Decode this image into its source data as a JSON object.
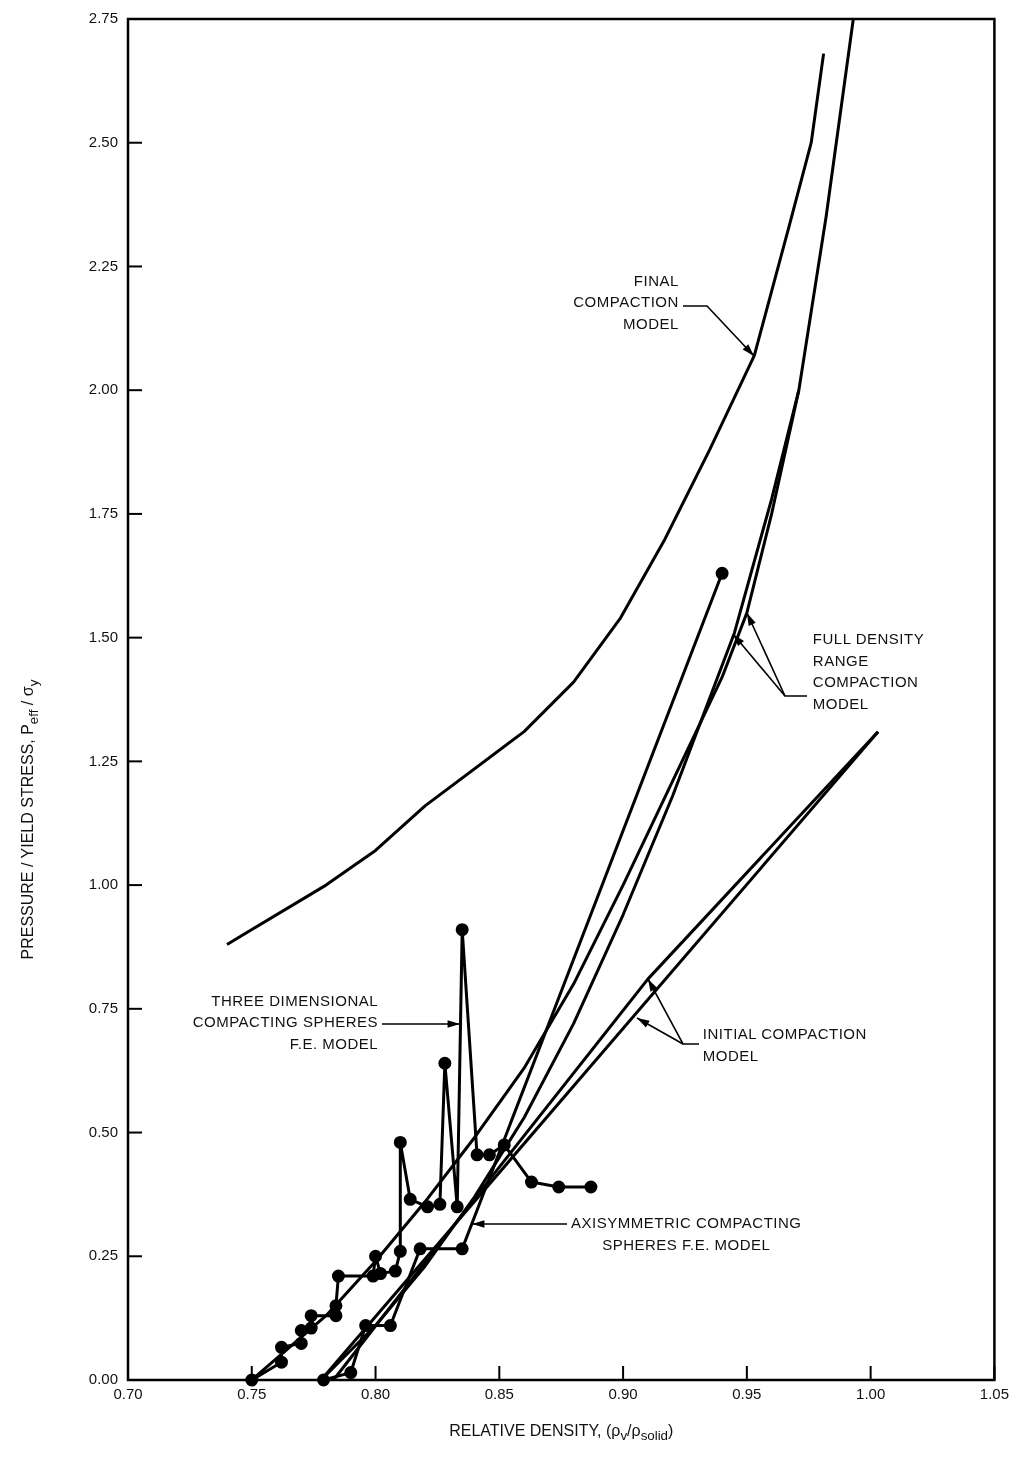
{
  "chart_data": {
    "type": "line",
    "xlabel": "RELATIVE DENSITY, (ρ$_{v}$/ρ$_{solid}$)",
    "ylabel": "PRESSURE / YIELD STRESS, P$_{eff}$ / σ$_{y}$",
    "xlim": [
      0.7,
      1.05
    ],
    "xticks": [
      {
        "value": 0.7,
        "label": "0.70"
      },
      {
        "value": 0.75,
        "label": "0.75"
      },
      {
        "value": 0.8,
        "label": "0.80"
      },
      {
        "value": 0.85,
        "label": "0.85"
      },
      {
        "value": 0.9,
        "label": "0.90"
      },
      {
        "value": 0.95,
        "label": "0.95"
      },
      {
        "value": 1.0,
        "label": "1.00"
      },
      {
        "value": 1.05,
        "label": "1.05"
      }
    ],
    "ylim": [
      0,
      2.75
    ],
    "yticks": [
      {
        "value": 0,
        "label": "0.00"
      },
      {
        "value": 0.25,
        "label": "0.25"
      },
      {
        "value": 0.5,
        "label": "0.50"
      },
      {
        "value": 0.75,
        "label": "0.75"
      },
      {
        "value": 1.0,
        "label": "1.00"
      },
      {
        "value": 1.25,
        "label": "1.25"
      },
      {
        "value": 1.5,
        "label": "1.50"
      },
      {
        "value": 1.75,
        "label": "1.75"
      },
      {
        "value": 2.0,
        "label": "2.00"
      },
      {
        "value": 2.25,
        "label": "2.25"
      },
      {
        "value": 2.5,
        "label": "2.50"
      },
      {
        "value": 2.75,
        "label": "2.75"
      }
    ],
    "grid": false,
    "legend": false,
    "line_style": "solid",
    "series": [
      {
        "color": "#000000",
        "marker": "none",
        "x": [
          0.74,
          0.78,
          0.8,
          0.82,
          0.86,
          0.88,
          0.899,
          0.917,
          0.935,
          0.953,
          0.967,
          0.976,
          0.981
        ],
        "values": [
          0.88,
          1.0,
          1.07,
          1.16,
          1.31,
          1.41,
          1.54,
          1.7,
          1.88,
          2.07,
          2.33,
          2.5,
          2.68
        ]
      },
      {
        "color": "#000000",
        "marker": "none",
        "x": [
          0.75,
          0.78,
          0.8,
          0.82,
          0.84,
          0.86,
          0.88,
          0.9,
          0.92,
          0.94,
          0.95,
          0.96,
          0.971,
          0.982,
          0.993
        ],
        "values": [
          0,
          0.13,
          0.24,
          0.36,
          0.49,
          0.63,
          0.8,
          1.0,
          1.21,
          1.42,
          1.55,
          1.75,
          2.0,
          2.35,
          2.75
        ]
      },
      {
        "color": "#000000",
        "marker": "none",
        "x": [
          0.778,
          0.8,
          0.82,
          0.84,
          0.86,
          0.88,
          0.9,
          0.92,
          0.945,
          0.96,
          0.971
        ],
        "values": [
          0,
          0.11,
          0.23,
          0.37,
          0.53,
          0.72,
          0.94,
          1.18,
          1.51,
          1.78,
          2.0
        ]
      },
      {
        "color": "#000000",
        "marker": "none",
        "x": [
          0.778,
          1.003
        ],
        "values": [
          0,
          1.31
        ]
      },
      {
        "color": "#000000",
        "marker": "none",
        "x": [
          0.783,
          0.85,
          0.91,
          1.003
        ],
        "values": [
          0,
          0.43,
          0.81,
          1.31
        ]
      },
      {
        "color": "#000000",
        "marker": "circle",
        "x": [
          0.75,
          0.762,
          0.762,
          0.77,
          0.77,
          0.774,
          0.774,
          0.784,
          0.784,
          0.785,
          0.799,
          0.8,
          0.802,
          0.808,
          0.81,
          0.81,
          0.814,
          0.821,
          0.826,
          0.828,
          0.833,
          0.835,
          0.841,
          0.846,
          0.852,
          0.863,
          0.874,
          0.887
        ],
        "values": [
          0,
          0.036,
          0.066,
          0.074,
          0.1,
          0.105,
          0.13,
          0.13,
          0.15,
          0.21,
          0.21,
          0.25,
          0.215,
          0.22,
          0.26,
          0.48,
          0.365,
          0.35,
          0.355,
          0.64,
          0.35,
          0.91,
          0.455,
          0.455,
          0.475,
          0.4,
          0.39,
          0.39
        ]
      },
      {
        "color": "#000000",
        "marker": "circle",
        "x": [
          0.779,
          0.79,
          0.796,
          0.806,
          0.818,
          0.835,
          0.94
        ],
        "values": [
          0,
          0.015,
          0.11,
          0.11,
          0.265,
          0.265,
          1.63
        ]
      }
    ],
    "annotations": [
      {
        "text": "FINAL\nCOMPACTION\nMODEL",
        "x": 0.953,
        "y": 2.07
      },
      {
        "text": "FULL DENSITY\nRANGE\nCOMPACTION\nMODEL",
        "x": 0.95,
        "y": 1.55
      },
      {
        "text": "INITIAL COMPACTION\nMODEL",
        "x": 0.91,
        "y": 0.81
      },
      {
        "text": "THREE DIMENSIONAL\nCOMPACTING SPHERES\nF.E. MODEL",
        "x": 0.834,
        "y": 0.72
      },
      {
        "text": "AXISYMMETRIC COMPACTING\nSPHERES F.E. MODEL",
        "x": 0.839,
        "y": 0.315
      }
    ]
  }
}
